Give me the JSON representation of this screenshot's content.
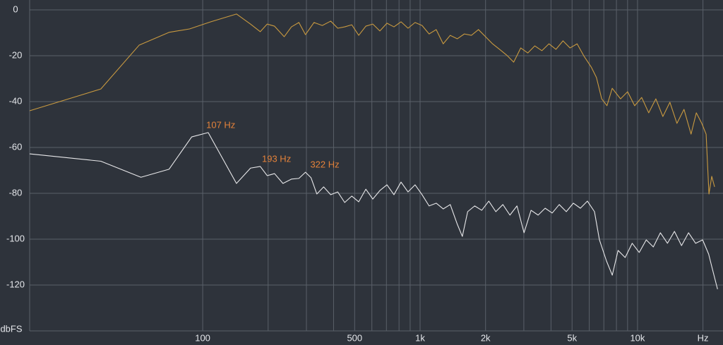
{
  "chart_data": {
    "type": "line",
    "y_label": "dbFS",
    "log_x": true,
    "grid": true,
    "xlim": [
      16,
      24000
    ],
    "ylim": [
      -140,
      0
    ],
    "xticks": [
      100,
      500,
      {
        "value": 1000,
        "label": "1k"
      },
      {
        "value": 2000,
        "label": "2k"
      },
      {
        "value": 5000,
        "label": "5k"
      },
      {
        "value": 10000,
        "label": "10k"
      },
      {
        "value": 20000,
        "label": "Hz"
      }
    ],
    "xminor": [
      200,
      300,
      400,
      600,
      700,
      800,
      900,
      3000,
      4000,
      6000,
      7000,
      8000,
      9000
    ],
    "yticks": [
      0,
      -20,
      -40,
      -60,
      -80,
      -100,
      -120
    ],
    "series": [
      {
        "color": "#c99a40",
        "x": [
          16,
          34,
          51,
          70,
          87,
          109,
          143,
          166,
          184,
          198,
          214,
          237,
          256,
          277,
          297,
          325,
          355,
          388,
          418,
          450,
          485,
          522,
          563,
          606,
          653,
          704,
          758,
          817,
          880,
          948,
          1021,
          1100,
          1186,
          1277,
          1376,
          1483,
          1598,
          1722,
          1855,
          1999,
          2154,
          2320,
          2500,
          2694,
          2903,
          3128,
          3370,
          3631,
          3913,
          4216,
          4543,
          4894,
          5274,
          5682,
          6123,
          6473,
          6843,
          7235,
          7649,
          8356,
          9004,
          9702,
          10450,
          11260,
          12140,
          13080,
          14090,
          15180,
          16360,
          17630,
          18640,
          19750,
          20680,
          21310,
          21950,
          22620
        ],
        "values": [
          -44,
          -34.5,
          -15.4,
          -9.8,
          -8.3,
          -5.2,
          -1.8,
          -6.2,
          -9.5,
          -6.2,
          -7.1,
          -11.7,
          -7.4,
          -5.5,
          -10.8,
          -5.5,
          -6.8,
          -4.9,
          -8,
          -7.4,
          -6.5,
          -11.1,
          -7.1,
          -6.2,
          -9.2,
          -5.8,
          -7.4,
          -5.2,
          -8,
          -5.5,
          -6.8,
          -10.5,
          -8.6,
          -14.8,
          -11.1,
          -12.6,
          -10.5,
          -11.1,
          -8.6,
          -11.7,
          -14.8,
          -17.2,
          -19.7,
          -22.8,
          -16.6,
          -18.8,
          -15.7,
          -17.8,
          -14.8,
          -17.2,
          -13.5,
          -16.6,
          -14.8,
          -20.3,
          -24.9,
          -29.5,
          -38.8,
          -41.8,
          -34.2,
          -38.8,
          -35.7,
          -41.8,
          -38.2,
          -44.9,
          -38.8,
          -46.5,
          -40.3,
          -49.5,
          -43.4,
          -54.2,
          -44.9,
          -49.5,
          -54.2,
          -80.3,
          -72.6,
          -77.2
        ]
      },
      {
        "color": "#e8e8ea",
        "x": [
          16,
          34,
          52,
          70,
          89,
          106,
          143,
          166,
          184,
          198,
          214,
          234,
          256,
          277,
          297,
          315,
          335,
          360,
          388,
          418,
          450,
          485,
          522,
          563,
          606,
          653,
          704,
          758,
          817,
          880,
          948,
          1021,
          1100,
          1186,
          1277,
          1376,
          1483,
          1564,
          1655,
          1783,
          1921,
          2070,
          2230,
          2403,
          2589,
          2790,
          3006,
          3239,
          3490,
          3760,
          4051,
          4365,
          4703,
          5068,
          5460,
          5883,
          6339,
          6681,
          7198,
          7655,
          8139,
          8772,
          9451,
          10180,
          10970,
          11820,
          12740,
          13730,
          14790,
          15940,
          17170,
          18500,
          19930,
          21240,
          22260,
          23340
        ],
        "values": [
          -62.8,
          -66,
          -73,
          -69.5,
          -55.4,
          -53.5,
          -75.7,
          -69,
          -68.3,
          -72.3,
          -71.4,
          -75.7,
          -73.8,
          -73.5,
          -70.8,
          -73.2,
          -80.3,
          -77.2,
          -80.6,
          -79.4,
          -84,
          -81.2,
          -83.7,
          -78.2,
          -82.5,
          -78.8,
          -76.3,
          -80.6,
          -75.1,
          -79.4,
          -76.3,
          -80.6,
          -85.5,
          -84.3,
          -86.8,
          -84.9,
          -93.5,
          -98.8,
          -88,
          -85.5,
          -87.4,
          -83.4,
          -88,
          -84.9,
          -89.5,
          -85.5,
          -97.2,
          -87.4,
          -89.5,
          -86.5,
          -88.6,
          -84.9,
          -88,
          -84.3,
          -86.5,
          -83.4,
          -88,
          -100.3,
          -109.5,
          -115.7,
          -104.9,
          -108,
          -101.8,
          -105.8,
          -100.3,
          -103.4,
          -97.2,
          -101.8,
          -96.6,
          -102.8,
          -97.2,
          -101.8,
          -100.3,
          -106.5,
          -114.2,
          -121.8
        ]
      }
    ],
    "annotations": [
      {
        "label": "107 Hz",
        "x": 107,
        "y": -53.5
      },
      {
        "label": "193 Hz",
        "x": 193,
        "y": -68.3
      },
      {
        "label": "322 Hz",
        "x": 322,
        "y": -70.8
      }
    ]
  }
}
